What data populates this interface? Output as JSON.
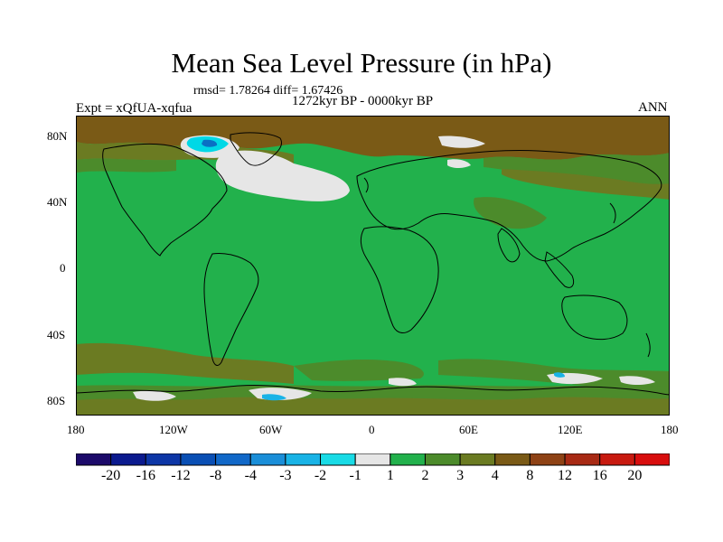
{
  "title": "Mean Sea Level Pressure (in hPa)",
  "stats": "rmsd= 1.78264 diff= 1.67426",
  "period": "1272kyr BP - 0000kyr BP",
  "experiment": "Expt = xQfUA-xqfua",
  "season": "ANN",
  "map": {
    "lat_labels": [
      "80N",
      "40N",
      "0",
      "40S",
      "80S"
    ],
    "lon_labels": [
      "180",
      "120W",
      "60W",
      "0",
      "60E",
      "120E",
      "180"
    ],
    "colors": {
      "main": "#22b14c",
      "dark_green": "#4c8b2b",
      "olive": "#6b7b22",
      "brown": "#7a5a16",
      "light_gray": "#e6e6e6",
      "cyan": "#00d8e6",
      "blue": "#0a6fc4"
    }
  },
  "colorbar": {
    "labels": [
      "-20",
      "-16",
      "-12",
      "-8",
      "-4",
      "-3",
      "-2",
      "-1",
      "1",
      "2",
      "3",
      "4",
      "8",
      "12",
      "16",
      "20"
    ],
    "colors": [
      "#1c0a6a",
      "#0b1a8e",
      "#0d36a6",
      "#0a4fb4",
      "#1168c8",
      "#1a8ed8",
      "#19b3e6",
      "#19dbe6",
      "#e6e6e6",
      "#22b14c",
      "#4c8b2b",
      "#6b7b22",
      "#7a5a16",
      "#8e4215",
      "#a82a14",
      "#c81a10",
      "#d80e0e"
    ]
  }
}
